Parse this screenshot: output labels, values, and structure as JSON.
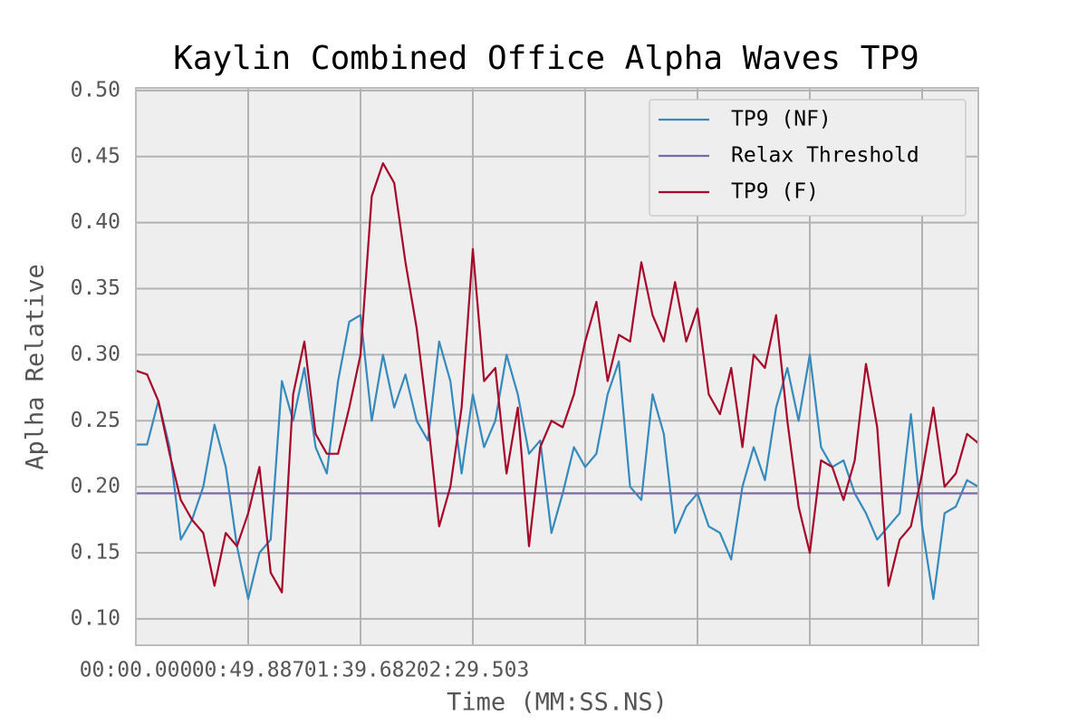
{
  "chart_data": {
    "type": "line",
    "title": "Kaylin Combined Office Alpha Waves TP9",
    "x_label": "Time (MM:SS.NS)",
    "y_label": "Aplha Relative",
    "x": [
      0,
      5,
      10,
      15,
      20,
      25,
      30,
      35,
      40,
      45,
      50,
      55,
      60,
      65,
      70,
      75,
      80,
      85,
      90,
      95,
      100,
      105,
      110,
      115,
      120,
      125,
      130,
      135,
      140,
      145,
      150,
      155,
      160,
      165,
      170,
      175,
      180,
      185,
      190,
      195,
      200,
      205,
      210,
      215,
      220,
      225,
      230,
      235,
      240,
      245,
      250,
      255,
      260,
      265,
      270,
      275,
      280,
      285,
      290,
      295,
      300,
      305,
      310,
      315,
      320,
      325,
      330,
      335,
      340,
      345,
      350,
      355,
      360,
      365,
      370,
      375
    ],
    "series": [
      {
        "name": "TP9 (NF)",
        "color": "#348ABD",
        "values": [
          0.232,
          0.232,
          0.265,
          0.23,
          0.16,
          0.175,
          0.2,
          0.247,
          0.215,
          0.155,
          0.115,
          0.15,
          0.16,
          0.28,
          0.25,
          0.29,
          0.23,
          0.21,
          0.28,
          0.325,
          0.33,
          0.25,
          0.3,
          0.26,
          0.285,
          0.25,
          0.235,
          0.31,
          0.28,
          0.21,
          0.27,
          0.23,
          0.25,
          0.3,
          0.27,
          0.225,
          0.235,
          0.165,
          0.195,
          0.23,
          0.215,
          0.225,
          0.27,
          0.295,
          0.2,
          0.19,
          0.27,
          0.24,
          0.165,
          0.185,
          0.195,
          0.17,
          0.165,
          0.145,
          0.2,
          0.23,
          0.205,
          0.26,
          0.29,
          0.25,
          0.3,
          0.23,
          0.215,
          0.22,
          0.195,
          0.18,
          0.16,
          0.17,
          0.18,
          0.255,
          0.17,
          0.115,
          0.18,
          0.185,
          0.205,
          0.2
        ]
      },
      {
        "name": "Relax Threshold",
        "color": "#7A68A6",
        "value": 0.195
      },
      {
        "name": "TP9 (F)",
        "color": "#A60628",
        "values": [
          0.288,
          0.285,
          0.265,
          0.225,
          0.19,
          0.175,
          0.165,
          0.125,
          0.165,
          0.155,
          0.18,
          0.215,
          0.135,
          0.12,
          0.27,
          0.31,
          0.24,
          0.225,
          0.225,
          0.26,
          0.3,
          0.42,
          0.445,
          0.43,
          0.37,
          0.32,
          0.25,
          0.17,
          0.2,
          0.26,
          0.38,
          0.28,
          0.29,
          0.21,
          0.26,
          0.155,
          0.23,
          0.25,
          0.245,
          0.27,
          0.31,
          0.34,
          0.28,
          0.315,
          0.31,
          0.37,
          0.33,
          0.31,
          0.355,
          0.31,
          0.335,
          0.27,
          0.255,
          0.29,
          0.23,
          0.3,
          0.29,
          0.33,
          0.25,
          0.185,
          0.15,
          0.22,
          0.215,
          0.19,
          0.22,
          0.293,
          0.245,
          0.125,
          0.16,
          0.17,
          0.21,
          0.26,
          0.2,
          0.21,
          0.24,
          0.233
        ]
      }
    ],
    "xlim": [
      0,
      375
    ],
    "ylim": [
      0.08,
      0.502
    ],
    "xticks": [
      {
        "value": 0,
        "label": "00:00.000"
      },
      {
        "value": 50,
        "label": "00:49.887"
      },
      {
        "value": 100,
        "label": "01:39.682"
      },
      {
        "value": 150,
        "label": "02:29.503"
      },
      {
        "value": 200,
        "label": null
      },
      {
        "value": 250,
        "label": null
      },
      {
        "value": 300,
        "label": null
      },
      {
        "value": 350,
        "label": null
      }
    ],
    "yticks": [
      {
        "value": 0.1,
        "label": "0.10"
      },
      {
        "value": 0.15,
        "label": "0.15"
      },
      {
        "value": 0.2,
        "label": "0.20"
      },
      {
        "value": 0.25,
        "label": "0.25"
      },
      {
        "value": 0.3,
        "label": "0.30"
      },
      {
        "value": 0.35,
        "label": "0.35"
      },
      {
        "value": 0.4,
        "label": "0.40"
      },
      {
        "value": 0.45,
        "label": "0.45"
      },
      {
        "value": 0.5,
        "label": "0.50"
      }
    ],
    "grid": true,
    "legend": "upper right"
  }
}
